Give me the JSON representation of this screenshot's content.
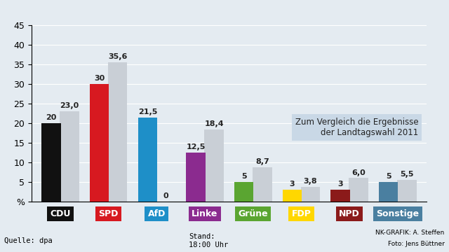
{
  "chart_data": {
    "type": "bar",
    "categories": [
      "CDU",
      "SPD",
      "AfD",
      "Linke",
      "Grüne",
      "FDP",
      "NPD",
      "Sonstige"
    ],
    "series": [
      {
        "colors": [
          "#111111",
          "#d71920",
          "#1e8fc8",
          "#8b2b8f",
          "#5aa531",
          "#ffd700",
          "#8b1a1a",
          "#4a7fa0"
        ],
        "values": [
          20,
          30,
          21.5,
          12.5,
          5,
          3,
          3,
          5
        ],
        "value_labels": [
          "20",
          "30",
          "21,5",
          "12,5",
          "5",
          "3",
          "3",
          "5"
        ]
      },
      {
        "color": "#c9cfd6",
        "values": [
          23.0,
          35.6,
          0,
          18.4,
          8.7,
          3.8,
          6.0,
          5.5
        ],
        "value_labels": [
          "23,0",
          "35,6",
          "0",
          "18,4",
          "8,7",
          "3,8",
          "6,0",
          "5,5"
        ]
      }
    ],
    "ylim": [
      0,
      45
    ],
    "yticks": [
      {
        "value": 0,
        "label": "%"
      },
      5,
      10,
      15,
      20,
      25,
      30,
      35,
      40,
      45
    ],
    "grid": true,
    "data_labels": true,
    "annotation": "Zum Vergleich die Ergebnisse\nder Landtagswahl 2011",
    "source": "Quelle: dpa",
    "timestamp": "Stand:\n18:00 Uhr",
    "credits": [
      "NK-GRAFIK: A. Steffen",
      "Foto: Jens Büttner"
    ]
  }
}
